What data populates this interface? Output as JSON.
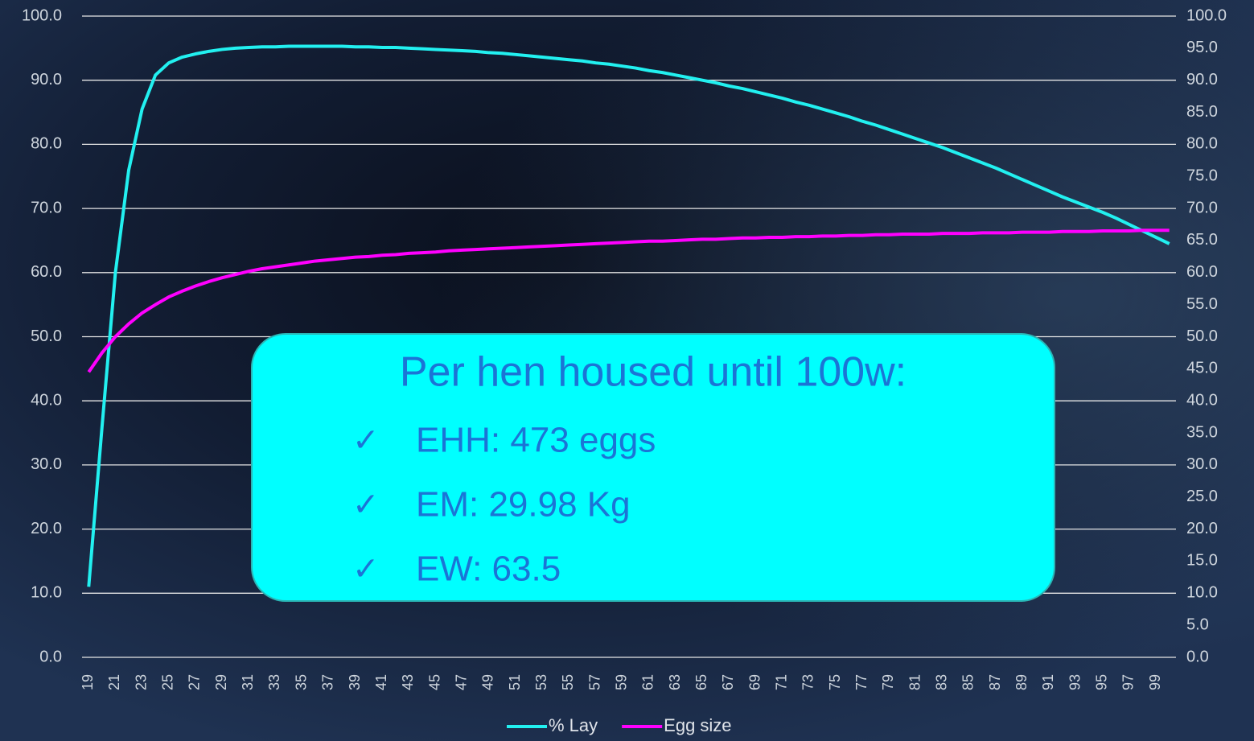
{
  "chart_data": {
    "type": "line",
    "categories": [
      "19",
      null,
      "21",
      null,
      "23",
      null,
      "25",
      null,
      "27",
      null,
      "29",
      null,
      "31",
      null,
      "33",
      null,
      "35",
      null,
      "37",
      null,
      "39",
      null,
      "41",
      null,
      "43",
      null,
      "45",
      null,
      "47",
      null,
      "49",
      null,
      "51",
      null,
      "53",
      null,
      "55",
      null,
      "57",
      null,
      "59",
      null,
      "61",
      null,
      "63",
      null,
      "65",
      null,
      "67",
      null,
      "69",
      null,
      "71",
      null,
      "73",
      null,
      "75",
      null,
      "77",
      null,
      "79",
      null,
      "81",
      null,
      "83",
      null,
      "85",
      null,
      "87",
      null,
      "89",
      null,
      "91",
      null,
      "93",
      null,
      "95",
      null,
      "97",
      null,
      "99",
      null
    ],
    "series": [
      {
        "name": "% Lay",
        "color": "#22f0f0",
        "values": [
          11.0,
          36.0,
          60.0,
          76.0,
          85.5,
          90.8,
          92.7,
          93.6,
          94.1,
          94.5,
          94.8,
          95.0,
          95.1,
          95.2,
          95.2,
          95.3,
          95.3,
          95.3,
          95.3,
          95.3,
          95.2,
          95.2,
          95.1,
          95.1,
          95.0,
          94.9,
          94.8,
          94.7,
          94.6,
          94.5,
          94.3,
          94.2,
          94.0,
          93.8,
          93.6,
          93.4,
          93.2,
          93.0,
          92.7,
          92.5,
          92.2,
          91.9,
          91.5,
          91.2,
          90.8,
          90.4,
          90.0,
          89.6,
          89.1,
          88.7,
          88.2,
          87.7,
          87.2,
          86.6,
          86.1,
          85.5,
          84.9,
          84.3,
          83.6,
          83.0,
          82.3,
          81.6,
          80.9,
          80.2,
          79.5,
          78.7,
          77.9,
          77.1,
          76.3,
          75.4,
          74.5,
          73.6,
          72.7,
          71.8,
          71.0,
          70.2,
          69.4,
          68.5,
          67.5,
          66.5,
          65.5,
          64.5
        ]
      },
      {
        "name": "Egg size",
        "color": "#ff00ff",
        "axis": "y2",
        "values": [
          44.5,
          47.5,
          50.0,
          52.0,
          53.7,
          55.0,
          56.2,
          57.1,
          57.9,
          58.6,
          59.2,
          59.7,
          60.2,
          60.6,
          60.9,
          61.2,
          61.5,
          61.8,
          62.0,
          62.2,
          62.4,
          62.5,
          62.7,
          62.8,
          63.0,
          63.1,
          63.2,
          63.4,
          63.5,
          63.6,
          63.7,
          63.8,
          63.9,
          64.0,
          64.1,
          64.2,
          64.3,
          64.4,
          64.5,
          64.6,
          64.7,
          64.8,
          64.9,
          64.9,
          65.0,
          65.1,
          65.2,
          65.2,
          65.3,
          65.4,
          65.4,
          65.5,
          65.5,
          65.6,
          65.6,
          65.7,
          65.7,
          65.8,
          65.8,
          65.9,
          65.9,
          66.0,
          66.0,
          66.0,
          66.1,
          66.1,
          66.1,
          66.2,
          66.2,
          66.2,
          66.3,
          66.3,
          66.3,
          66.4,
          66.4,
          66.4,
          66.5,
          66.5,
          66.5,
          66.6,
          66.6,
          66.6
        ]
      }
    ],
    "ylim": [
      0,
      100
    ],
    "yticks": [
      {
        "value": 0,
        "label": "0.0"
      },
      {
        "value": 10,
        "label": "10.0"
      },
      {
        "value": 20,
        "label": "20.0"
      },
      {
        "value": 30,
        "label": "30.0"
      },
      {
        "value": 40,
        "label": "40.0"
      },
      {
        "value": 50,
        "label": "50.0"
      },
      {
        "value": 60,
        "label": "60.0"
      },
      {
        "value": 70,
        "label": "70.0"
      },
      {
        "value": 80,
        "label": "80.0"
      },
      {
        "value": 90,
        "label": "90.0"
      },
      {
        "value": 100,
        "label": "100.0"
      }
    ],
    "y2lim": [
      0,
      100
    ],
    "y2ticks": [
      {
        "value": 0,
        "label": "0.0"
      },
      {
        "value": 5,
        "label": "5.0"
      },
      {
        "value": 10,
        "label": "10.0"
      },
      {
        "value": 15,
        "label": "15.0"
      },
      {
        "value": 20,
        "label": "20.0"
      },
      {
        "value": 25,
        "label": "25.0"
      },
      {
        "value": 30,
        "label": "30.0"
      },
      {
        "value": 35,
        "label": "35.0"
      },
      {
        "value": 40,
        "label": "40.0"
      },
      {
        "value": 45,
        "label": "45.0"
      },
      {
        "value": 50,
        "label": "50.0"
      },
      {
        "value": 55,
        "label": "55.0"
      },
      {
        "value": 60,
        "label": "60.0"
      },
      {
        "value": 65,
        "label": "65.0"
      },
      {
        "value": 70,
        "label": "70.0"
      },
      {
        "value": 75,
        "label": "75.0"
      },
      {
        "value": 80,
        "label": "80.0"
      },
      {
        "value": 85,
        "label": "85.0"
      },
      {
        "value": 90,
        "label": "90.0"
      },
      {
        "value": 95,
        "label": "95.0"
      },
      {
        "value": 100,
        "label": "100.0"
      }
    ],
    "grid": true,
    "legend": "bottom",
    "annotation": {
      "title": "Per hen housed until 100w:",
      "marker": "✓",
      "items": [
        "EHH: 473 eggs",
        "EM: 29.98 Kg",
        "EW: 63.5"
      ]
    }
  }
}
